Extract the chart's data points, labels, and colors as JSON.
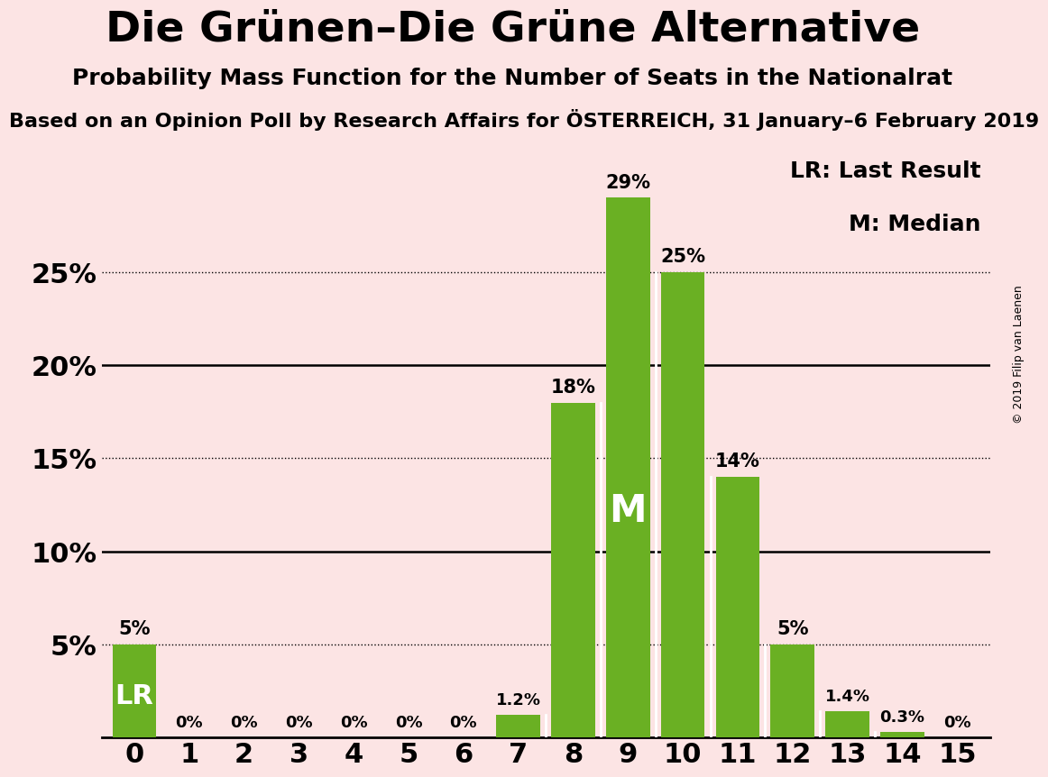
{
  "title": "Die Grünen–Die Grüne Alternative",
  "subtitle": "Probability Mass Function for the Number of Seats in the Nationalrat",
  "source_line": "Based on an Opinion Poll by Research Affairs for ÖSTERREICH, 31 January–6 February 2019",
  "copyright": "© 2019 Filip van Laenen",
  "categories": [
    0,
    1,
    2,
    3,
    4,
    5,
    6,
    7,
    8,
    9,
    10,
    11,
    12,
    13,
    14,
    15
  ],
  "values": [
    5,
    0,
    0,
    0,
    0,
    0,
    0,
    1.2,
    18,
    29,
    25,
    14,
    5,
    1.4,
    0.3,
    0
  ],
  "bar_color": "#6ab023",
  "background_color": "#fce4e4",
  "lr_seat": 0,
  "median_seat": 9,
  "legend_lr": "LR: Last Result",
  "legend_m": "M: Median",
  "ytick_positions": [
    0,
    5,
    10,
    15,
    20,
    25
  ],
  "ytick_labels": [
    "",
    "5%",
    "10%",
    "15%",
    "20%",
    "25%"
  ],
  "solid_gridlines": [
    10,
    20
  ],
  "dotted_gridlines": [
    5,
    15,
    25
  ],
  "ylim": [
    0,
    32
  ],
  "label_small_fontsize": 13,
  "label_large_fontsize": 15,
  "ytick_fontsize": 22,
  "xtick_fontsize": 22,
  "title_fontsize": 34,
  "subtitle_fontsize": 18,
  "source_fontsize": 16,
  "legend_fontsize": 18,
  "lr_fontsize": 22,
  "m_fontsize": 30
}
